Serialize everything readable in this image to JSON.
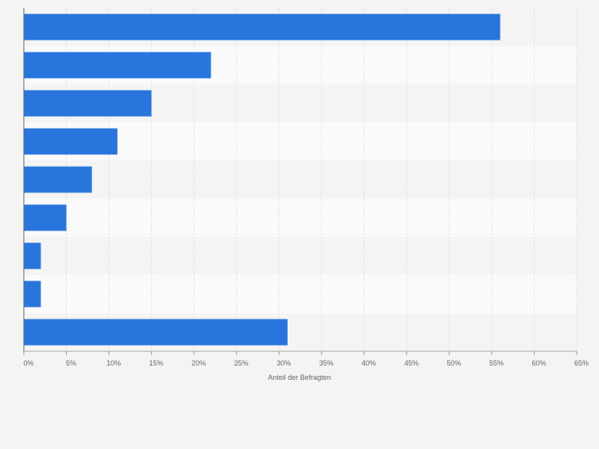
{
  "chart_data": {
    "type": "bar",
    "orientation": "horizontal",
    "categories": [
      "",
      "",
      "",
      "",
      "",
      "",
      "",
      "",
      ""
    ],
    "values": [
      56,
      22,
      15,
      11,
      8,
      5,
      2,
      2,
      31
    ],
    "xlabel": "Anteil der Befragten",
    "ylabel": "",
    "xlim": [
      0,
      65
    ],
    "ticks": [
      "0%",
      "5%",
      "10%",
      "15%",
      "20%",
      "25%",
      "30%",
      "35%",
      "40%",
      "45%",
      "50%",
      "55%",
      "60%",
      "65%"
    ],
    "grid": true,
    "bar_color": "#2876dd",
    "row_band_colors": [
      "#f4f4f4",
      "#fafafa"
    ]
  }
}
